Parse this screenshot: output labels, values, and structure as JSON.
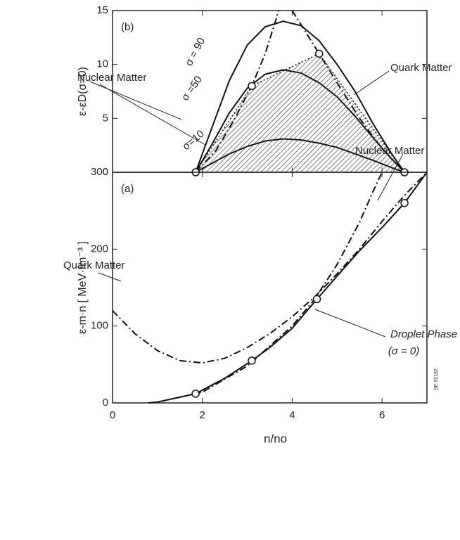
{
  "chart_data": [
    {
      "type": "line",
      "panel": "(b)",
      "ylabel": "ε-εD(σ=0)",
      "xlim": [
        0,
        7
      ],
      "ylim": [
        0,
        15
      ],
      "xticks": [
        0,
        2,
        4,
        6
      ],
      "yticks": [
        0,
        5,
        10,
        15
      ],
      "series": [
        {
          "name": "σ = 90",
          "style": "solid",
          "color": "#111111",
          "x": [
            1.85,
            2.2,
            2.6,
            3,
            3.4,
            3.8,
            4.2,
            4.6,
            5,
            5.4,
            5.8,
            6.2,
            6.5
          ],
          "values": [
            0,
            4,
            8.5,
            11.8,
            13.5,
            14,
            13.6,
            12.2,
            10,
            7.5,
            4.5,
            1.8,
            0
          ]
        },
        {
          "name": "σ =50",
          "style": "solid",
          "color": "#111111",
          "x": [
            1.85,
            2.2,
            2.6,
            3,
            3.4,
            3.8,
            4.2,
            4.6,
            5,
            5.4,
            5.8,
            6.2,
            6.5
          ],
          "values": [
            0,
            2.5,
            5.5,
            7.8,
            9.1,
            9.5,
            9.2,
            8.3,
            7,
            5.2,
            3.2,
            1.3,
            0
          ]
        },
        {
          "name": "σ=10",
          "style": "solid",
          "color": "#111111",
          "x": [
            1.85,
            2.2,
            2.6,
            3,
            3.4,
            3.8,
            4.2,
            4.6,
            5,
            5.4,
            5.8,
            6.2,
            6.5
          ],
          "values": [
            0,
            0.8,
            1.7,
            2.4,
            2.9,
            3.1,
            3,
            2.7,
            2.3,
            1.7,
            1.1,
            0.45,
            0
          ]
        },
        {
          "name": "Nuclear Matter",
          "style": "dashdot",
          "color": "#111111",
          "x": [
            1.85,
            2.3,
            2.7,
            3.1,
            3.4,
            3.7
          ],
          "values": [
            0,
            2,
            4.8,
            8,
            11,
            15
          ]
        },
        {
          "name": "Quark Matter",
          "style": "dashdot",
          "color": "#111111",
          "x": [
            4.0,
            4.3,
            4.6,
            5,
            5.5,
            6,
            6.5
          ],
          "values": [
            15,
            13,
            11,
            8.3,
            5,
            2.2,
            0
          ]
        },
        {
          "style": "hatched",
          "color": "#111111",
          "x": [
            1.85,
            3.1,
            4.6,
            6.5
          ],
          "values": [
            0,
            8,
            11,
            0
          ],
          "markers": true
        }
      ]
    },
    {
      "type": "line",
      "panel": "(a)",
      "xlabel": "n/no",
      "ylabel": "ε-m·n [ MeV·fm⁻³ ]",
      "xlim": [
        0,
        7
      ],
      "ylim": [
        0,
        300
      ],
      "xticks": [
        0,
        2,
        4,
        6
      ],
      "yticks": [
        0,
        100,
        200,
        300
      ],
      "series": [
        {
          "name": "Nuclear Matter",
          "style": "dashdot",
          "color": "#111111",
          "x": [
            0.8,
            1,
            2,
            3,
            4,
            4.5,
            5,
            5.5,
            5.8,
            6
          ],
          "values": [
            0,
            1,
            14,
            48,
            100,
            135,
            180,
            235,
            275,
            300
          ]
        },
        {
          "name": "Quark Matter",
          "style": "dashdot",
          "color": "#111111",
          "x": [
            0,
            0.5,
            1,
            1.5,
            2,
            2.5,
            3,
            3.5,
            4,
            4.5,
            5,
            5.5,
            6,
            6.5,
            7
          ],
          "values": [
            120,
            90,
            68,
            55,
            52,
            58,
            72,
            90,
            112,
            138,
            168,
            200,
            236,
            270,
            300
          ]
        },
        {
          "name": "Droplet Phase",
          "style": "solid",
          "color": "#111111",
          "x": [
            0.8,
            1,
            1.85,
            2.5,
            3.1,
            3.5,
            4,
            4.55,
            5,
            5.5,
            6,
            6.5,
            7
          ],
          "values": [
            0,
            1,
            12,
            32,
            55,
            72,
            97,
            135,
            165,
            198,
            228,
            260,
            300
          ]
        },
        {
          "style": "markers",
          "color": "#111111",
          "x": [
            1.85,
            3.1,
            4.55,
            6.5
          ],
          "values": [
            12,
            55,
            135,
            260
          ],
          "markers": true
        }
      ],
      "annotations": [
        "(σ = 0)",
        "SE 92182"
      ]
    }
  ]
}
